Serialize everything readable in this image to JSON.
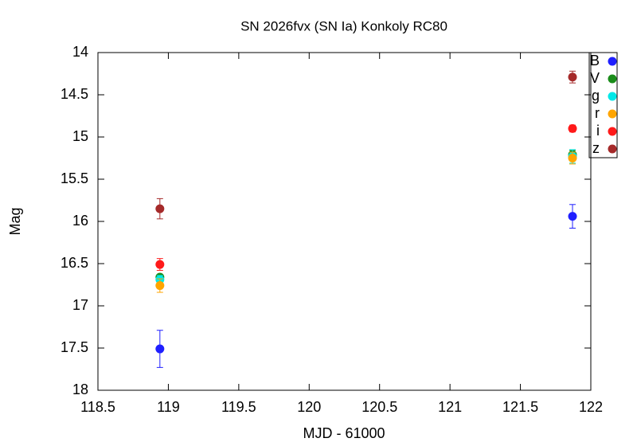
{
  "chart_data": {
    "type": "scatter",
    "title": "SN 2026fvx (SN Ia) Konkoly RC80",
    "x_label": "MJD - 61000",
    "y_label": "Mag",
    "x": [
      118.94,
      121.87
    ],
    "xlim": [
      118.5,
      122
    ],
    "xticks": [
      118.5,
      119,
      119.5,
      120,
      120.5,
      121,
      121.5,
      122
    ],
    "ylim": [
      18,
      14
    ],
    "yticks": [
      14,
      14.5,
      15,
      15.5,
      16,
      16.5,
      17,
      17.5,
      18
    ],
    "y_inverted": true,
    "grid": false,
    "legend": "upper right",
    "series": [
      {
        "name": "B",
        "color": "#1f1fff",
        "values": [
          17.51,
          15.94
        ],
        "errors": [
          0.22,
          0.14
        ]
      },
      {
        "name": "V",
        "color": "#1a8c1a",
        "values": [
          16.66,
          15.21
        ],
        "errors": [
          0.03,
          0.05
        ]
      },
      {
        "name": "g",
        "color": "#00e8e8",
        "values": [
          16.69,
          15.23
        ],
        "errors": [
          0.05,
          0.08
        ]
      },
      {
        "name": "r",
        "color": "#ffa500",
        "values": [
          16.76,
          15.25
        ],
        "errors": [
          0.08,
          0.07
        ]
      },
      {
        "name": "i",
        "color": "#ff1a1a",
        "values": [
          16.51,
          14.9
        ],
        "errors": [
          0.07,
          0.04
        ]
      },
      {
        "name": "z",
        "color": "#a52a2a",
        "values": [
          15.85,
          14.29
        ],
        "errors": [
          0.12,
          0.07
        ]
      }
    ]
  }
}
